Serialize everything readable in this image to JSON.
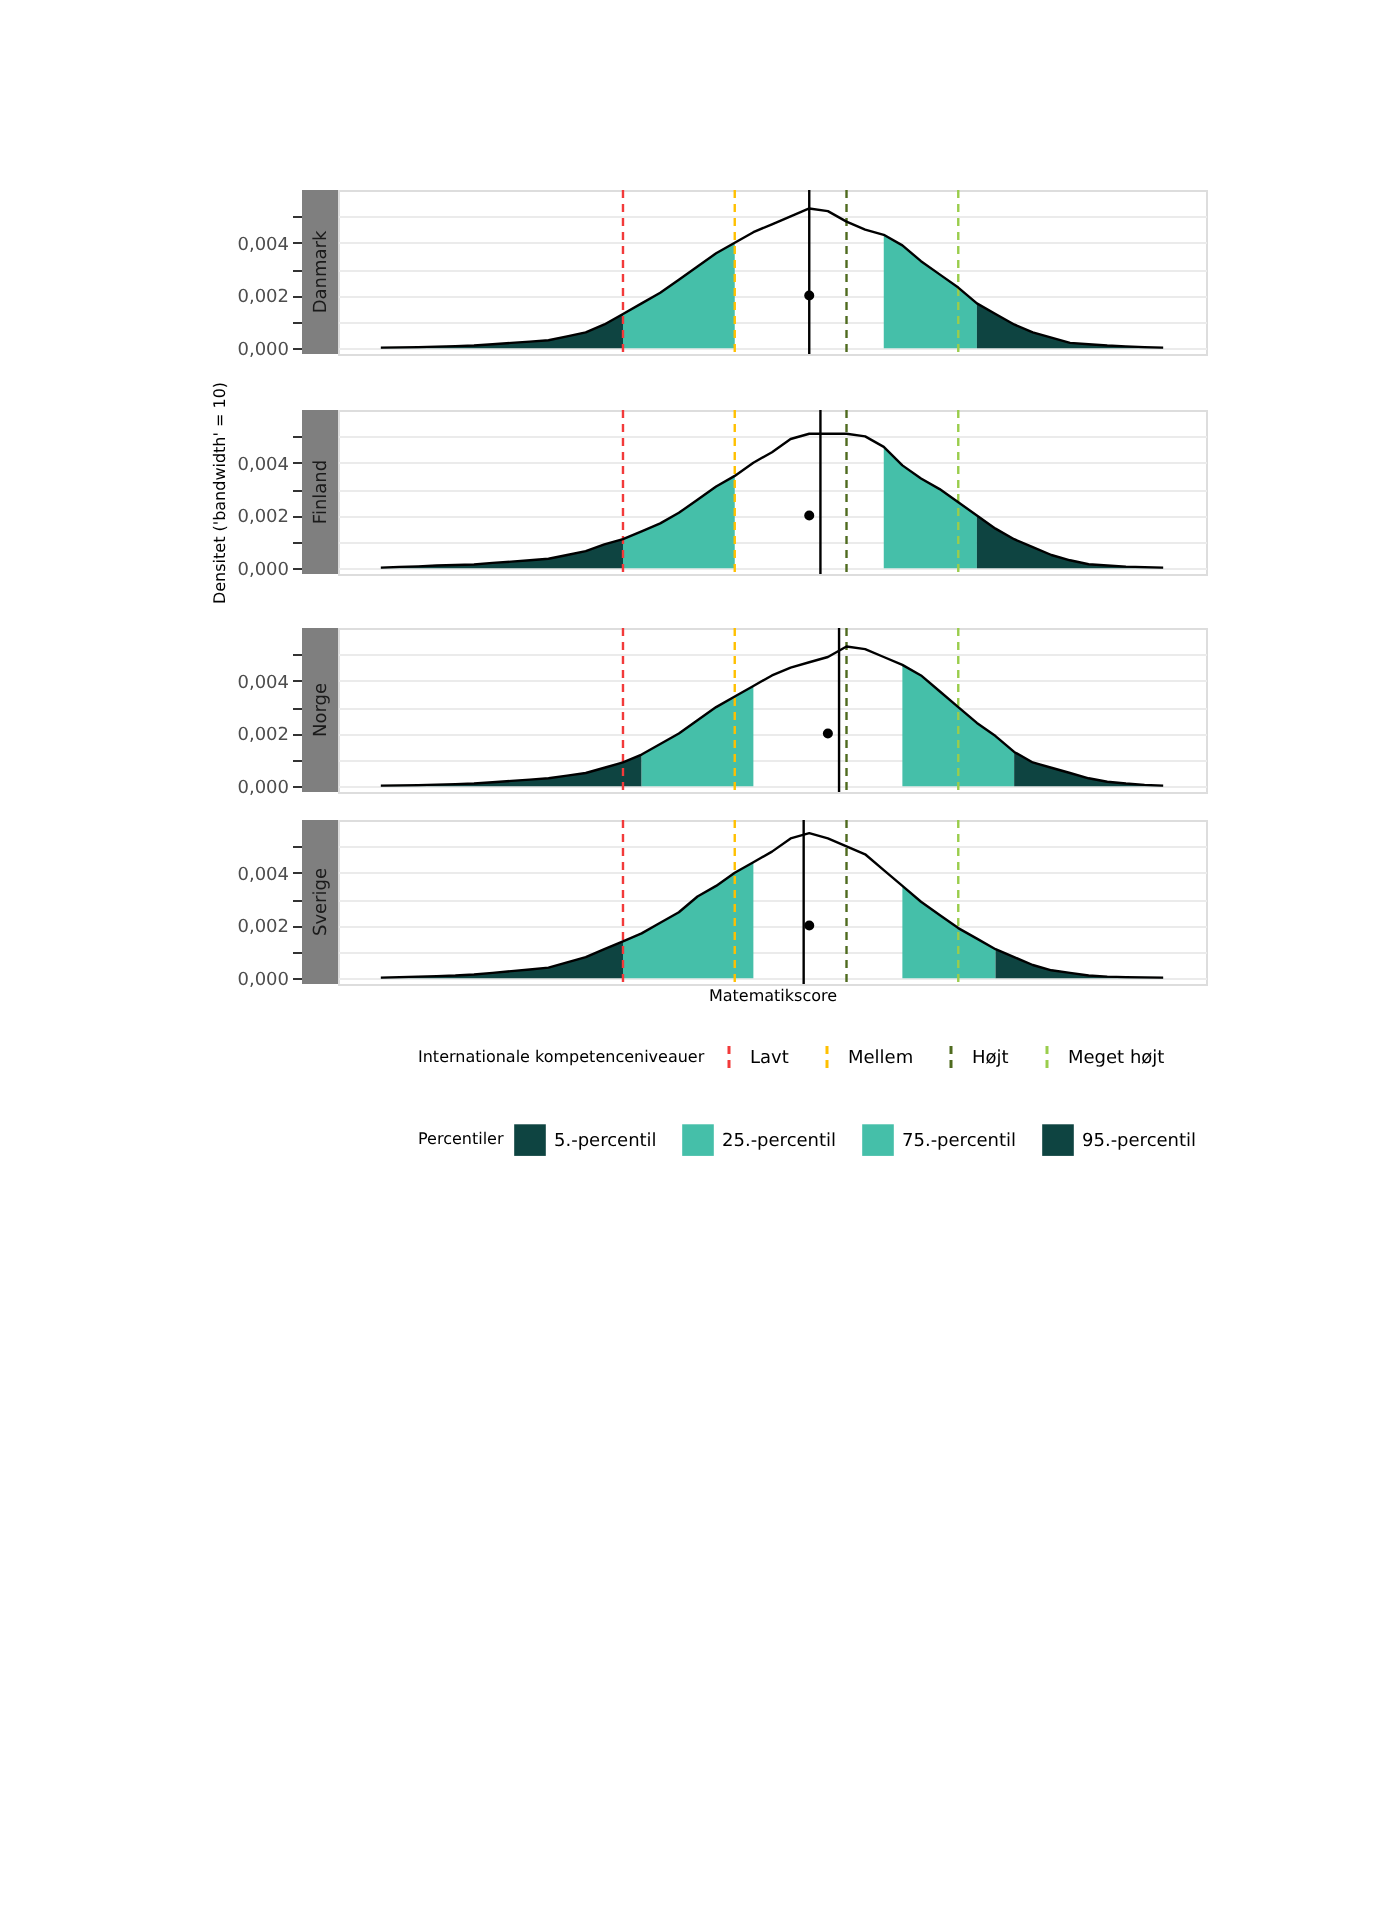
{
  "chart_data": [
    {
      "type": "area",
      "title": "Danmark",
      "ylim": [
        -0.00022,
        0.006
      ],
      "grid": "y",
      "tick_labels": "y",
      "categories": [
        null,
        null,
        null,
        null,
        null,
        null,
        null,
        null,
        null,
        null,
        null,
        null,
        null,
        null,
        null,
        null,
        null,
        null,
        null,
        null,
        null,
        null,
        null,
        null,
        null,
        null,
        null,
        null,
        null,
        null,
        null,
        null,
        null,
        null,
        null,
        null,
        null,
        null,
        null,
        null,
        null,
        null,
        null
      ],
      "yticks": [
        {
          "value": 0,
          "label": "0,000"
        },
        {
          "value": 0.001,
          "label": null
        },
        {
          "value": 0.002,
          "label": "0,002"
        },
        {
          "value": 0.003,
          "label": null
        },
        {
          "value": 0.004,
          "label": "0,004"
        },
        {
          "value": 0.005,
          "label": null
        }
      ],
      "series": [
        {
          "color": "#0e4441",
          "values": [
            2e-05,
            3e-05,
            4e-05,
            6e-05,
            8e-05,
            0.0001,
            0.00015,
            0.0002,
            0.00025,
            0.0003,
            0.00045,
            0.0006,
            0.0009,
            0.0013,
            null,
            null,
            null,
            null,
            null,
            null,
            null,
            null,
            null,
            null,
            null,
            null,
            null,
            null,
            null,
            null,
            null,
            null,
            null,
            null,
            null,
            null,
            null,
            null,
            null,
            null,
            null,
            null,
            null
          ]
        },
        {
          "color": "#45bfa9",
          "values": [
            null,
            null,
            null,
            null,
            null,
            null,
            null,
            null,
            null,
            null,
            null,
            null,
            null,
            0.0013,
            0.0017,
            0.0021,
            0.0026,
            0.0031,
            0.0036,
            0.004,
            null,
            null,
            null,
            null,
            null,
            null,
            null,
            null,
            null,
            null,
            null,
            null,
            null,
            null,
            null,
            null,
            null,
            null,
            null,
            null,
            null,
            null,
            null
          ]
        },
        {
          "color": "#45bfa9",
          "values": [
            null,
            null,
            null,
            null,
            null,
            null,
            null,
            null,
            null,
            null,
            null,
            null,
            null,
            null,
            null,
            null,
            null,
            null,
            null,
            null,
            null,
            null,
            null,
            null,
            null,
            null,
            null,
            0.0043,
            0.0039,
            0.0033,
            0.0028,
            0.0023,
            0.0017,
            null,
            null,
            null,
            null,
            null,
            null,
            null,
            null,
            null,
            null
          ]
        },
        {
          "color": "#0e4441",
          "values": [
            null,
            null,
            null,
            null,
            null,
            null,
            null,
            null,
            null,
            null,
            null,
            null,
            null,
            null,
            null,
            null,
            null,
            null,
            null,
            null,
            null,
            null,
            null,
            null,
            null,
            null,
            null,
            null,
            null,
            null,
            null,
            null,
            0.0017,
            0.0013,
            0.0009,
            0.0006,
            0.0004,
            0.0002,
            0.00015,
            0.0001,
            7e-05,
            4e-05,
            2e-05
          ]
        },
        {
          "type": "line",
          "color": "#000000",
          "values": [
            2e-05,
            3e-05,
            4e-05,
            6e-05,
            8e-05,
            0.0001,
            0.00015,
            0.0002,
            0.00025,
            0.0003,
            0.00045,
            0.0006,
            0.0009,
            0.0013,
            0.0017,
            0.0021,
            0.0026,
            0.0031,
            0.0036,
            0.004,
            0.0044,
            0.0047,
            0.005,
            0.0053,
            0.0052,
            0.0048,
            0.0045,
            0.0043,
            0.0039,
            0.0033,
            0.0028,
            0.0023,
            0.0017,
            0.0013,
            0.0009,
            0.0006,
            0.0004,
            0.0002,
            0.00015,
            0.0001,
            7e-05,
            4e-05,
            2e-05
          ]
        },
        {
          "type": "scatter",
          "color": "#000000",
          "values": [
            null,
            null,
            null,
            null,
            null,
            null,
            null,
            null,
            null,
            null,
            null,
            null,
            null,
            null,
            null,
            null,
            null,
            null,
            null,
            null,
            null,
            null,
            null,
            0.002,
            null,
            null,
            null,
            null,
            null,
            null,
            null,
            null,
            null,
            null,
            null,
            null,
            null,
            null,
            null,
            null,
            null,
            null,
            null
          ]
        }
      ],
      "ref_lines": [
        {
          "axis": "x",
          "color": "#f23a3a",
          "line_style": "dashed"
        },
        {
          "axis": "x",
          "color": "#ffc000",
          "line_style": "dashed"
        },
        {
          "axis": "x",
          "color": "#4f6b1f",
          "line_style": "dashed"
        },
        {
          "axis": "x",
          "color": "#9acd4c",
          "line_style": "dashed"
        },
        {
          "axis": "x",
          "color": "#000000",
          "line_style": "solid"
        }
      ]
    },
    {
      "type": "area",
      "title": "Finland",
      "ylabel": "Densitet ('bandwidth' = 10)",
      "ylim": [
        -0.00022,
        0.006
      ],
      "grid": "y",
      "tick_labels": "y",
      "categories": [
        null,
        null,
        null,
        null,
        null,
        null,
        null,
        null,
        null,
        null,
        null,
        null,
        null,
        null,
        null,
        null,
        null,
        null,
        null,
        null,
        null,
        null,
        null,
        null,
        null,
        null,
        null,
        null,
        null,
        null,
        null,
        null,
        null,
        null,
        null,
        null,
        null,
        null,
        null,
        null,
        null,
        null,
        null
      ],
      "yticks": [
        {
          "value": 0,
          "label": "0,000"
        },
        {
          "value": 0.001,
          "label": null
        },
        {
          "value": 0.002,
          "label": "0,002"
        },
        {
          "value": 0.003,
          "label": null
        },
        {
          "value": 0.004,
          "label": "0,004"
        },
        {
          "value": 0.005,
          "label": null
        }
      ],
      "series": [
        {
          "color": "#0e4441",
          "values": [
            2e-05,
            5e-05,
            7e-05,
            0.0001,
            0.00012,
            0.00014,
            0.0002,
            0.00025,
            0.0003,
            0.00036,
            0.0005,
            0.00065,
            0.0009,
            0.0011,
            null,
            null,
            null,
            null,
            null,
            null,
            null,
            null,
            null,
            null,
            null,
            null,
            null,
            null,
            null,
            null,
            null,
            null,
            null,
            null,
            null,
            null,
            null,
            null,
            null,
            null,
            null,
            null,
            null
          ]
        },
        {
          "color": "#45bfa9",
          "values": [
            null,
            null,
            null,
            null,
            null,
            null,
            null,
            null,
            null,
            null,
            null,
            null,
            null,
            0.0011,
            0.0014,
            0.0017,
            0.0021,
            0.0026,
            0.0031,
            0.0035,
            null,
            null,
            null,
            null,
            null,
            null,
            null,
            null,
            null,
            null,
            null,
            null,
            null,
            null,
            null,
            null,
            null,
            null,
            null,
            null,
            null,
            null,
            null
          ]
        },
        {
          "color": "#45bfa9",
          "values": [
            null,
            null,
            null,
            null,
            null,
            null,
            null,
            null,
            null,
            null,
            null,
            null,
            null,
            null,
            null,
            null,
            null,
            null,
            null,
            null,
            null,
            null,
            null,
            null,
            null,
            null,
            null,
            0.0046,
            0.0039,
            0.0034,
            0.003,
            0.0025,
            0.002,
            null,
            null,
            null,
            null,
            null,
            null,
            null,
            null,
            null,
            null
          ]
        },
        {
          "color": "#0e4441",
          "values": [
            null,
            null,
            null,
            null,
            null,
            null,
            null,
            null,
            null,
            null,
            null,
            null,
            null,
            null,
            null,
            null,
            null,
            null,
            null,
            null,
            null,
            null,
            null,
            null,
            null,
            null,
            null,
            null,
            null,
            null,
            null,
            null,
            0.002,
            0.0015,
            0.0011,
            0.0008,
            0.0005,
            0.0003,
            0.00015,
            0.0001,
            6e-05,
            4e-05,
            2e-05
          ]
        },
        {
          "type": "line",
          "color": "#000000",
          "values": [
            2e-05,
            5e-05,
            7e-05,
            0.0001,
            0.00012,
            0.00014,
            0.0002,
            0.00025,
            0.0003,
            0.00036,
            0.0005,
            0.00065,
            0.0009,
            0.0011,
            0.0014,
            0.0017,
            0.0021,
            0.0026,
            0.0031,
            0.0035,
            0.004,
            0.0044,
            0.0049,
            0.0051,
            0.0051,
            0.0051,
            0.005,
            0.0046,
            0.0039,
            0.0034,
            0.003,
            0.0025,
            0.002,
            0.0015,
            0.0011,
            0.0008,
            0.0005,
            0.0003,
            0.00015,
            0.0001,
            6e-05,
            4e-05,
            2e-05
          ]
        },
        {
          "type": "scatter",
          "color": "#000000",
          "values": [
            null,
            null,
            null,
            null,
            null,
            null,
            null,
            null,
            null,
            null,
            null,
            null,
            null,
            null,
            null,
            null,
            null,
            null,
            null,
            null,
            null,
            null,
            null,
            0.002,
            null,
            null,
            null,
            null,
            null,
            null,
            null,
            null,
            null,
            null,
            null,
            null,
            null,
            null,
            null,
            null,
            null,
            null,
            null
          ]
        }
      ],
      "ref_lines": [
        {
          "axis": "x",
          "color": "#f23a3a",
          "line_style": "dashed"
        },
        {
          "axis": "x",
          "color": "#ffc000",
          "line_style": "dashed"
        },
        {
          "axis": "x",
          "color": "#4f6b1f",
          "line_style": "dashed"
        },
        {
          "axis": "x",
          "color": "#9acd4c",
          "line_style": "dashed"
        },
        {
          "axis": "x",
          "color": "#000000",
          "line_style": "solid"
        }
      ]
    },
    {
      "type": "area",
      "title": "Norge",
      "ylim": [
        -0.00022,
        0.006
      ],
      "grid": "y",
      "tick_labels": "y",
      "categories": [
        null,
        null,
        null,
        null,
        null,
        null,
        null,
        null,
        null,
        null,
        null,
        null,
        null,
        null,
        null,
        null,
        null,
        null,
        null,
        null,
        null,
        null,
        null,
        null,
        null,
        null,
        null,
        null,
        null,
        null,
        null,
        null,
        null,
        null,
        null,
        null,
        null,
        null,
        null,
        null,
        null,
        null,
        null
      ],
      "yticks": [
        {
          "value": 0,
          "label": "0,000"
        },
        {
          "value": 0.001,
          "label": null
        },
        {
          "value": 0.002,
          "label": "0,002"
        },
        {
          "value": 0.003,
          "label": null
        },
        {
          "value": 0.004,
          "label": "0,004"
        },
        {
          "value": 0.005,
          "label": null
        }
      ],
      "series": [
        {
          "color": "#0e4441",
          "values": [
            2e-05,
            3e-05,
            4e-05,
            6e-05,
            8e-05,
            0.0001,
            0.00015,
            0.0002,
            0.00025,
            0.0003,
            0.0004,
            0.0005,
            0.0007,
            0.0009,
            0.0012,
            null,
            null,
            null,
            null,
            null,
            null,
            null,
            null,
            null,
            null,
            null,
            null,
            null,
            null,
            null,
            null,
            null,
            null,
            null,
            null,
            null,
            null,
            null,
            null,
            null,
            null,
            null,
            null
          ]
        },
        {
          "color": "#45bfa9",
          "values": [
            null,
            null,
            null,
            null,
            null,
            null,
            null,
            null,
            null,
            null,
            null,
            null,
            null,
            null,
            0.0012,
            0.0016,
            0.002,
            0.0025,
            0.003,
            0.0034,
            0.0038,
            null,
            null,
            null,
            null,
            null,
            null,
            null,
            null,
            null,
            null,
            null,
            null,
            null,
            null,
            null,
            null,
            null,
            null,
            null,
            null,
            null,
            null
          ]
        },
        {
          "color": "#45bfa9",
          "values": [
            null,
            null,
            null,
            null,
            null,
            null,
            null,
            null,
            null,
            null,
            null,
            null,
            null,
            null,
            null,
            null,
            null,
            null,
            null,
            null,
            null,
            null,
            null,
            null,
            null,
            null,
            null,
            null,
            0.0046,
            0.0042,
            0.0036,
            0.003,
            0.0024,
            0.0019,
            0.0013,
            null,
            null,
            null,
            null,
            null,
            null,
            null,
            null
          ]
        },
        {
          "color": "#0e4441",
          "values": [
            null,
            null,
            null,
            null,
            null,
            null,
            null,
            null,
            null,
            null,
            null,
            null,
            null,
            null,
            null,
            null,
            null,
            null,
            null,
            null,
            null,
            null,
            null,
            null,
            null,
            null,
            null,
            null,
            null,
            null,
            null,
            null,
            null,
            null,
            0.0013,
            0.0009,
            0.0007,
            0.0005,
            0.0003,
            0.00017,
            0.0001,
            5e-05,
            2e-05
          ]
        },
        {
          "type": "line",
          "color": "#000000",
          "values": [
            2e-05,
            3e-05,
            4e-05,
            6e-05,
            8e-05,
            0.0001,
            0.00015,
            0.0002,
            0.00025,
            0.0003,
            0.0004,
            0.0005,
            0.0007,
            0.0009,
            0.0012,
            0.0016,
            0.002,
            0.0025,
            0.003,
            0.0034,
            0.0038,
            0.0042,
            0.0045,
            0.0047,
            0.0049,
            0.0053,
            0.0052,
            0.0049,
            0.0046,
            0.0042,
            0.0036,
            0.003,
            0.0024,
            0.0019,
            0.0013,
            0.0009,
            0.0007,
            0.0005,
            0.0003,
            0.00017,
            0.0001,
            5e-05,
            2e-05
          ]
        },
        {
          "type": "scatter",
          "color": "#000000",
          "values": [
            null,
            null,
            null,
            null,
            null,
            null,
            null,
            null,
            null,
            null,
            null,
            null,
            null,
            null,
            null,
            null,
            null,
            null,
            null,
            null,
            null,
            null,
            null,
            null,
            0.002,
            null,
            null,
            null,
            null,
            null,
            null,
            null,
            null,
            null,
            null,
            null,
            null,
            null,
            null,
            null,
            null,
            null,
            null
          ]
        }
      ],
      "ref_lines": [
        {
          "axis": "x",
          "color": "#f23a3a",
          "line_style": "dashed"
        },
        {
          "axis": "x",
          "color": "#ffc000",
          "line_style": "dashed"
        },
        {
          "axis": "x",
          "color": "#4f6b1f",
          "line_style": "dashed"
        },
        {
          "axis": "x",
          "color": "#9acd4c",
          "line_style": "dashed"
        },
        {
          "axis": "x",
          "color": "#000000",
          "line_style": "solid"
        }
      ]
    },
    {
      "type": "area",
      "title": "Sverige",
      "xlabel": "Matematikscore",
      "legend": "bottom",
      "legend_title": "Percentiler",
      "annotations": [
        "Internationale kompetenceniveauer"
      ],
      "ylim": [
        -0.00022,
        0.006
      ],
      "grid": "y",
      "tick_labels": "y",
      "categories": [
        null,
        null,
        null,
        null,
        null,
        null,
        null,
        null,
        null,
        null,
        null,
        null,
        null,
        null,
        null,
        null,
        null,
        null,
        null,
        null,
        null,
        null,
        null,
        null,
        null,
        null,
        null,
        null,
        null,
        null,
        null,
        null,
        null,
        null,
        null,
        null,
        null,
        null,
        null,
        null,
        null,
        null,
        null
      ],
      "yticks": [
        {
          "value": 0,
          "label": "0,000"
        },
        {
          "value": 0.001,
          "label": null
        },
        {
          "value": 0.002,
          "label": "0,002"
        },
        {
          "value": 0.003,
          "label": null
        },
        {
          "value": 0.004,
          "label": "0,004"
        },
        {
          "value": 0.005,
          "label": null
        }
      ],
      "series": [
        {
          "name": "5.-percentil",
          "color": "#0e4441",
          "values": [
            2e-05,
            4e-05,
            6e-05,
            8e-05,
            0.0001,
            0.00014,
            0.0002,
            0.00027,
            0.00033,
            0.0004,
            0.0006,
            0.0008,
            0.0011,
            0.0014,
            null,
            null,
            null,
            null,
            null,
            null,
            null,
            null,
            null,
            null,
            null,
            null,
            null,
            null,
            null,
            null,
            null,
            null,
            null,
            null,
            null,
            null,
            null,
            null,
            null,
            null,
            null,
            null,
            null
          ]
        },
        {
          "name": "25.-percentil",
          "color": "#45bfa9",
          "values": [
            null,
            null,
            null,
            null,
            null,
            null,
            null,
            null,
            null,
            null,
            null,
            null,
            null,
            0.0014,
            0.0017,
            0.0021,
            0.0025,
            0.0031,
            0.0035,
            0.004,
            0.0044,
            null,
            null,
            null,
            null,
            null,
            null,
            null,
            null,
            null,
            null,
            null,
            null,
            null,
            null,
            null,
            null,
            null,
            null,
            null,
            null,
            null,
            null
          ]
        },
        {
          "name": "75.-percentil",
          "color": "#45bfa9",
          "values": [
            null,
            null,
            null,
            null,
            null,
            null,
            null,
            null,
            null,
            null,
            null,
            null,
            null,
            null,
            null,
            null,
            null,
            null,
            null,
            null,
            null,
            null,
            null,
            null,
            null,
            null,
            null,
            null,
            0.0035,
            0.0029,
            0.0024,
            0.0019,
            0.0015,
            0.0011,
            null,
            null,
            null,
            null,
            null,
            null,
            null,
            null,
            null
          ]
        },
        {
          "name": "95.-percentil",
          "color": "#0e4441",
          "values": [
            null,
            null,
            null,
            null,
            null,
            null,
            null,
            null,
            null,
            null,
            null,
            null,
            null,
            null,
            null,
            null,
            null,
            null,
            null,
            null,
            null,
            null,
            null,
            null,
            null,
            null,
            null,
            null,
            null,
            null,
            null,
            null,
            null,
            0.0011,
            0.0008,
            0.0005,
            0.0003,
            0.0002,
            0.0001,
            6e-05,
            4e-05,
            3e-05,
            2e-05
          ]
        },
        {
          "type": "line",
          "color": "#000000",
          "values": [
            2e-05,
            4e-05,
            6e-05,
            8e-05,
            0.0001,
            0.00014,
            0.0002,
            0.00027,
            0.00033,
            0.0004,
            0.0006,
            0.0008,
            0.0011,
            0.0014,
            0.0017,
            0.0021,
            0.0025,
            0.0031,
            0.0035,
            0.004,
            0.0044,
            0.0048,
            0.0053,
            0.0055,
            0.0053,
            0.005,
            0.0047,
            0.0041,
            0.0035,
            0.0029,
            0.0024,
            0.0019,
            0.0015,
            0.0011,
            0.0008,
            0.0005,
            0.0003,
            0.0002,
            0.0001,
            6e-05,
            4e-05,
            3e-05,
            2e-05
          ]
        },
        {
          "type": "scatter",
          "color": "#000000",
          "values": [
            null,
            null,
            null,
            null,
            null,
            null,
            null,
            null,
            null,
            null,
            null,
            null,
            null,
            null,
            null,
            null,
            null,
            null,
            null,
            null,
            null,
            null,
            null,
            0.002,
            null,
            null,
            null,
            null,
            null,
            null,
            null,
            null,
            null,
            null,
            null,
            null,
            null,
            null,
            null,
            null,
            null,
            null,
            null
          ]
        }
      ],
      "ref_lines": [
        {
          "axis": "x",
          "label": "Lavt",
          "color": "#f23a3a",
          "line_style": "dashed"
        },
        {
          "axis": "x",
          "label": "Mellem",
          "color": "#ffc000",
          "line_style": "dashed"
        },
        {
          "axis": "x",
          "label": "Højt",
          "color": "#4f6b1f",
          "line_style": "dashed"
        },
        {
          "axis": "x",
          "label": "Meget højt",
          "color": "#9acd4c",
          "line_style": "dashed"
        },
        {
          "axis": "x",
          "color": "#000000",
          "line_style": "solid"
        }
      ]
    }
  ]
}
